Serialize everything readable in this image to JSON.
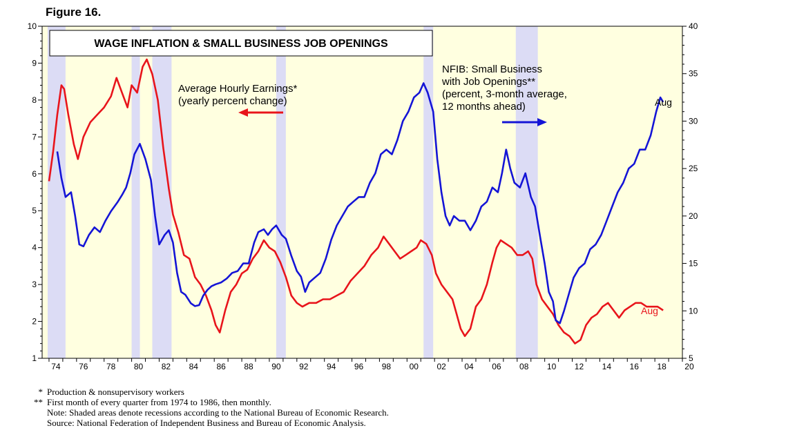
{
  "figure_label": "Figure 16.",
  "chart_data": {
    "type": "line",
    "title": "WAGE INFLATION & SMALL BUSINESS JOB OPENINGS",
    "x_range": [
      1973.5,
      2020.0
    ],
    "x_tick_labels": [
      "74",
      "76",
      "78",
      "80",
      "82",
      "84",
      "86",
      "88",
      "90",
      "92",
      "94",
      "96",
      "98",
      "00",
      "02",
      "04",
      "06",
      "08",
      "10",
      "12",
      "14",
      "16",
      "18",
      "20"
    ],
    "left_axis": {
      "range": [
        1,
        10
      ],
      "ticks": [
        1,
        2,
        3,
        4,
        5,
        6,
        7,
        8,
        9,
        10
      ]
    },
    "right_axis": {
      "range": [
        5,
        40
      ],
      "ticks": [
        5,
        10,
        15,
        20,
        25,
        30,
        35,
        40
      ]
    },
    "recessions": [
      [
        1973.9,
        1975.2
      ],
      [
        1980.0,
        1980.6
      ],
      [
        1981.5,
        1982.9
      ],
      [
        1990.5,
        1991.2
      ],
      [
        2001.2,
        2001.9
      ],
      [
        2007.9,
        2009.5
      ]
    ],
    "series": [
      {
        "name": "Average Hourly Earnings*",
        "sublabel": "(yearly percent change)",
        "axis": "left",
        "color": "#e8141b",
        "end_label": "Aug",
        "points": [
          [
            1974.0,
            5.8
          ],
          [
            1974.3,
            6.6
          ],
          [
            1974.6,
            7.6
          ],
          [
            1974.9,
            8.4
          ],
          [
            1975.1,
            8.3
          ],
          [
            1975.4,
            7.6
          ],
          [
            1975.8,
            6.8
          ],
          [
            1976.1,
            6.4
          ],
          [
            1976.5,
            7.0
          ],
          [
            1977.0,
            7.4
          ],
          [
            1977.5,
            7.6
          ],
          [
            1978.0,
            7.8
          ],
          [
            1978.5,
            8.1
          ],
          [
            1978.9,
            8.6
          ],
          [
            1979.3,
            8.2
          ],
          [
            1979.7,
            7.8
          ],
          [
            1980.0,
            8.4
          ],
          [
            1980.4,
            8.2
          ],
          [
            1980.8,
            8.9
          ],
          [
            1981.1,
            9.1
          ],
          [
            1981.5,
            8.7
          ],
          [
            1981.9,
            8.0
          ],
          [
            1982.3,
            6.7
          ],
          [
            1982.7,
            5.6
          ],
          [
            1983.0,
            4.9
          ],
          [
            1983.4,
            4.4
          ],
          [
            1983.8,
            3.8
          ],
          [
            1984.2,
            3.7
          ],
          [
            1984.6,
            3.2
          ],
          [
            1985.0,
            3.0
          ],
          [
            1985.4,
            2.7
          ],
          [
            1985.8,
            2.3
          ],
          [
            1986.1,
            1.9
          ],
          [
            1986.4,
            1.7
          ],
          [
            1986.8,
            2.3
          ],
          [
            1987.2,
            2.8
          ],
          [
            1987.6,
            3.0
          ],
          [
            1988.0,
            3.3
          ],
          [
            1988.4,
            3.4
          ],
          [
            1988.8,
            3.7
          ],
          [
            1989.2,
            3.9
          ],
          [
            1989.6,
            4.2
          ],
          [
            1990.0,
            4.0
          ],
          [
            1990.4,
            3.9
          ],
          [
            1990.8,
            3.6
          ],
          [
            1991.2,
            3.2
          ],
          [
            1991.6,
            2.7
          ],
          [
            1992.0,
            2.5
          ],
          [
            1992.4,
            2.4
          ],
          [
            1992.9,
            2.5
          ],
          [
            1993.4,
            2.5
          ],
          [
            1993.9,
            2.6
          ],
          [
            1994.4,
            2.6
          ],
          [
            1994.9,
            2.7
          ],
          [
            1995.4,
            2.8
          ],
          [
            1995.9,
            3.1
          ],
          [
            1996.4,
            3.3
          ],
          [
            1996.9,
            3.5
          ],
          [
            1997.4,
            3.8
          ],
          [
            1997.9,
            4.0
          ],
          [
            1998.3,
            4.3
          ],
          [
            1998.7,
            4.1
          ],
          [
            1999.1,
            3.9
          ],
          [
            1999.5,
            3.7
          ],
          [
            1999.9,
            3.8
          ],
          [
            2000.3,
            3.9
          ],
          [
            2000.7,
            4.0
          ],
          [
            2001.0,
            4.2
          ],
          [
            2001.4,
            4.1
          ],
          [
            2001.8,
            3.8
          ],
          [
            2002.1,
            3.3
          ],
          [
            2002.5,
            3.0
          ],
          [
            2002.9,
            2.8
          ],
          [
            2003.3,
            2.6
          ],
          [
            2003.6,
            2.2
          ],
          [
            2003.9,
            1.8
          ],
          [
            2004.2,
            1.6
          ],
          [
            2004.6,
            1.8
          ],
          [
            2005.0,
            2.4
          ],
          [
            2005.4,
            2.6
          ],
          [
            2005.8,
            3.0
          ],
          [
            2006.2,
            3.6
          ],
          [
            2006.5,
            4.0
          ],
          [
            2006.8,
            4.2
          ],
          [
            2007.2,
            4.1
          ],
          [
            2007.6,
            4.0
          ],
          [
            2008.0,
            3.8
          ],
          [
            2008.4,
            3.8
          ],
          [
            2008.8,
            3.9
          ],
          [
            2009.1,
            3.7
          ],
          [
            2009.4,
            3.0
          ],
          [
            2009.8,
            2.6
          ],
          [
            2010.2,
            2.4
          ],
          [
            2010.6,
            2.2
          ],
          [
            2011.0,
            1.9
          ],
          [
            2011.4,
            1.7
          ],
          [
            2011.8,
            1.6
          ],
          [
            2012.2,
            1.4
          ],
          [
            2012.6,
            1.5
          ],
          [
            2013.0,
            1.9
          ],
          [
            2013.4,
            2.1
          ],
          [
            2013.8,
            2.2
          ],
          [
            2014.2,
            2.4
          ],
          [
            2014.6,
            2.5
          ],
          [
            2015.0,
            2.3
          ],
          [
            2015.4,
            2.1
          ],
          [
            2015.8,
            2.3
          ],
          [
            2016.2,
            2.4
          ],
          [
            2016.6,
            2.5
          ],
          [
            2017.0,
            2.5
          ],
          [
            2017.4,
            2.4
          ],
          [
            2017.8,
            2.4
          ],
          [
            2018.2,
            2.4
          ],
          [
            2018.6,
            2.3
          ]
        ]
      },
      {
        "name": "NFIB: Small Business with Job Openings**",
        "sublabel": "(percent, 3-month average, 12 months ahead)",
        "axis": "right",
        "color": "#1414d6",
        "end_label": "Aug",
        "points": [
          [
            1974.6,
            26.8
          ],
          [
            1974.9,
            24.0
          ],
          [
            1975.2,
            22.0
          ],
          [
            1975.6,
            22.5
          ],
          [
            1975.9,
            20.0
          ],
          [
            1976.2,
            17.0
          ],
          [
            1976.5,
            16.8
          ],
          [
            1976.9,
            18.0
          ],
          [
            1977.3,
            18.8
          ],
          [
            1977.7,
            18.3
          ],
          [
            1978.1,
            19.5
          ],
          [
            1978.5,
            20.5
          ],
          [
            1979.0,
            21.5
          ],
          [
            1979.3,
            22.2
          ],
          [
            1979.6,
            23.0
          ],
          [
            1979.9,
            24.5
          ],
          [
            1980.2,
            26.5
          ],
          [
            1980.6,
            27.6
          ],
          [
            1981.0,
            26.0
          ],
          [
            1981.4,
            23.8
          ],
          [
            1981.7,
            20.0
          ],
          [
            1982.0,
            17.0
          ],
          [
            1982.4,
            18.0
          ],
          [
            1982.7,
            18.5
          ],
          [
            1983.0,
            17.2
          ],
          [
            1983.3,
            14.0
          ],
          [
            1983.6,
            12.0
          ],
          [
            1983.9,
            11.7
          ],
          [
            1984.3,
            10.8
          ],
          [
            1984.6,
            10.5
          ],
          [
            1984.9,
            10.6
          ],
          [
            1985.2,
            11.6
          ],
          [
            1985.5,
            12.2
          ],
          [
            1985.8,
            12.6
          ],
          [
            1986.1,
            12.8
          ],
          [
            1986.5,
            13.0
          ],
          [
            1986.9,
            13.4
          ],
          [
            1987.3,
            14.0
          ],
          [
            1987.7,
            14.2
          ],
          [
            1988.1,
            15.0
          ],
          [
            1988.5,
            15.0
          ],
          [
            1988.9,
            17.2
          ],
          [
            1989.2,
            18.3
          ],
          [
            1989.6,
            18.6
          ],
          [
            1989.9,
            18.0
          ],
          [
            1990.2,
            18.6
          ],
          [
            1990.5,
            19.0
          ],
          [
            1990.9,
            18.0
          ],
          [
            1991.2,
            17.6
          ],
          [
            1991.6,
            15.8
          ],
          [
            1992.0,
            14.2
          ],
          [
            1992.3,
            13.6
          ],
          [
            1992.6,
            12.0
          ],
          [
            1992.9,
            13.0
          ],
          [
            1993.3,
            13.5
          ],
          [
            1993.7,
            14.0
          ],
          [
            1994.1,
            15.5
          ],
          [
            1994.5,
            17.5
          ],
          [
            1994.9,
            19.0
          ],
          [
            1995.3,
            20.0
          ],
          [
            1995.7,
            21.0
          ],
          [
            1996.1,
            21.5
          ],
          [
            1996.5,
            22.0
          ],
          [
            1996.9,
            22.0
          ],
          [
            1997.3,
            23.5
          ],
          [
            1997.7,
            24.5
          ],
          [
            1998.1,
            26.5
          ],
          [
            1998.5,
            27.0
          ],
          [
            1998.9,
            26.5
          ],
          [
            1999.3,
            28.0
          ],
          [
            1999.7,
            30.0
          ],
          [
            2000.1,
            31.0
          ],
          [
            2000.5,
            32.5
          ],
          [
            2000.9,
            33.0
          ],
          [
            2001.2,
            34.0
          ],
          [
            2001.5,
            33.0
          ],
          [
            2001.9,
            31.0
          ],
          [
            2002.2,
            26.0
          ],
          [
            2002.5,
            22.5
          ],
          [
            2002.8,
            20.0
          ],
          [
            2003.1,
            19.0
          ],
          [
            2003.4,
            20.0
          ],
          [
            2003.8,
            19.5
          ],
          [
            2004.2,
            19.5
          ],
          [
            2004.6,
            18.5
          ],
          [
            2005.0,
            19.5
          ],
          [
            2005.4,
            21.0
          ],
          [
            2005.8,
            21.5
          ],
          [
            2006.2,
            23.0
          ],
          [
            2006.6,
            22.5
          ],
          [
            2006.9,
            24.5
          ],
          [
            2007.2,
            27.0
          ],
          [
            2007.5,
            25.0
          ],
          [
            2007.8,
            23.5
          ],
          [
            2008.2,
            23.0
          ],
          [
            2008.6,
            24.5
          ],
          [
            2009.0,
            22.0
          ],
          [
            2009.3,
            21.0
          ],
          [
            2009.7,
            17.5
          ],
          [
            2010.0,
            15.0
          ],
          [
            2010.3,
            12.0
          ],
          [
            2010.6,
            11.0
          ],
          [
            2010.8,
            9.0
          ],
          [
            2011.1,
            8.7
          ],
          [
            2011.4,
            10.0
          ],
          [
            2011.8,
            12.0
          ],
          [
            2012.1,
            13.5
          ],
          [
            2012.5,
            14.5
          ],
          [
            2012.9,
            15.0
          ],
          [
            2013.3,
            16.5
          ],
          [
            2013.7,
            17.0
          ],
          [
            2014.1,
            18.0
          ],
          [
            2014.5,
            19.5
          ],
          [
            2014.9,
            21.0
          ],
          [
            2015.3,
            22.5
          ],
          [
            2015.7,
            23.5
          ],
          [
            2016.1,
            25.0
          ],
          [
            2016.5,
            25.5
          ],
          [
            2016.9,
            27.0
          ],
          [
            2017.3,
            27.0
          ],
          [
            2017.7,
            28.5
          ],
          [
            2018.1,
            31.0
          ],
          [
            2018.4,
            32.5
          ],
          [
            2018.6,
            32.0
          ]
        ]
      }
    ]
  },
  "notes": [
    {
      "mark": "*",
      "text": "Production & nonsupervisory workers"
    },
    {
      "mark": "**",
      "text": "First month of every quarter from 1974 to 1986, then monthly."
    },
    {
      "mark": "",
      "text": "Note: Shaded areas denote recessions according to the National Bureau of Economic Research."
    },
    {
      "mark": "",
      "text": "Source: National Federation of Independent Business and Bureau of Economic Analysis."
    }
  ]
}
